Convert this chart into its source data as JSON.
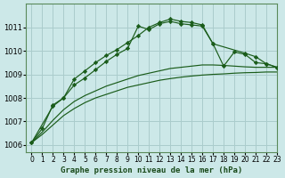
{
  "title": "Graphe pression niveau de la mer (hPa)",
  "bg_color": "#cce8e8",
  "grid_color": "#aacccc",
  "line_color": "#1a5c1a",
  "xlim": [
    -0.5,
    23
  ],
  "ylim": [
    1005.7,
    1012.0
  ],
  "xticks": [
    0,
    1,
    2,
    3,
    4,
    5,
    6,
    7,
    8,
    9,
    10,
    11,
    12,
    13,
    14,
    15,
    16,
    17,
    18,
    19,
    20,
    21,
    22,
    23
  ],
  "yticks": [
    1006,
    1007,
    1008,
    1009,
    1010,
    1011
  ],
  "series_marked1": {
    "x": [
      0,
      1,
      2,
      3,
      4,
      5,
      6,
      7,
      8,
      9,
      10,
      11,
      12,
      13,
      14,
      15,
      16,
      17,
      18,
      19,
      20,
      21,
      22,
      23
    ],
    "y": [
      1006.1,
      1006.7,
      1007.7,
      1008.0,
      1008.8,
      1009.15,
      1009.5,
      1009.8,
      1010.05,
      1010.35,
      1010.65,
      1011.0,
      1011.2,
      1011.35,
      1011.25,
      1011.2,
      1011.1,
      1010.3,
      1009.35,
      1009.95,
      1009.85,
      1009.5,
      1009.45,
      1009.3
    ]
  },
  "series_marked2": {
    "x": [
      0,
      2,
      3,
      4,
      5,
      6,
      7,
      8,
      9,
      10,
      11,
      12,
      13,
      14,
      15,
      16,
      17,
      20,
      21,
      22,
      23
    ],
    "y": [
      1006.1,
      1007.65,
      1008.0,
      1008.55,
      1008.85,
      1009.2,
      1009.55,
      1009.85,
      1010.1,
      1011.05,
      1010.9,
      1011.15,
      1011.25,
      1011.15,
      1011.1,
      1011.05,
      1010.3,
      1009.9,
      1009.75,
      1009.45,
      1009.3
    ]
  },
  "series_plain1": {
    "x": [
      0,
      1,
      2,
      3,
      4,
      5,
      6,
      7,
      8,
      9,
      10,
      11,
      12,
      13,
      14,
      15,
      16,
      17,
      18,
      19,
      20,
      21,
      22,
      23
    ],
    "y": [
      1006.1,
      1006.55,
      1007.05,
      1007.5,
      1007.85,
      1008.1,
      1008.3,
      1008.5,
      1008.65,
      1008.8,
      1008.95,
      1009.05,
      1009.15,
      1009.25,
      1009.3,
      1009.35,
      1009.4,
      1009.4,
      1009.38,
      1009.35,
      1009.32,
      1009.3,
      1009.3,
      1009.3
    ]
  },
  "series_plain2": {
    "x": [
      0,
      1,
      2,
      3,
      4,
      5,
      6,
      7,
      8,
      9,
      10,
      11,
      12,
      13,
      14,
      15,
      16,
      17,
      18,
      19,
      20,
      21,
      22,
      23
    ],
    "y": [
      1006.1,
      1006.45,
      1006.85,
      1007.25,
      1007.55,
      1007.8,
      1008.0,
      1008.15,
      1008.3,
      1008.45,
      1008.55,
      1008.65,
      1008.75,
      1008.82,
      1008.88,
      1008.93,
      1008.97,
      1009.0,
      1009.02,
      1009.05,
      1009.07,
      1009.08,
      1009.1,
      1009.1
    ]
  }
}
